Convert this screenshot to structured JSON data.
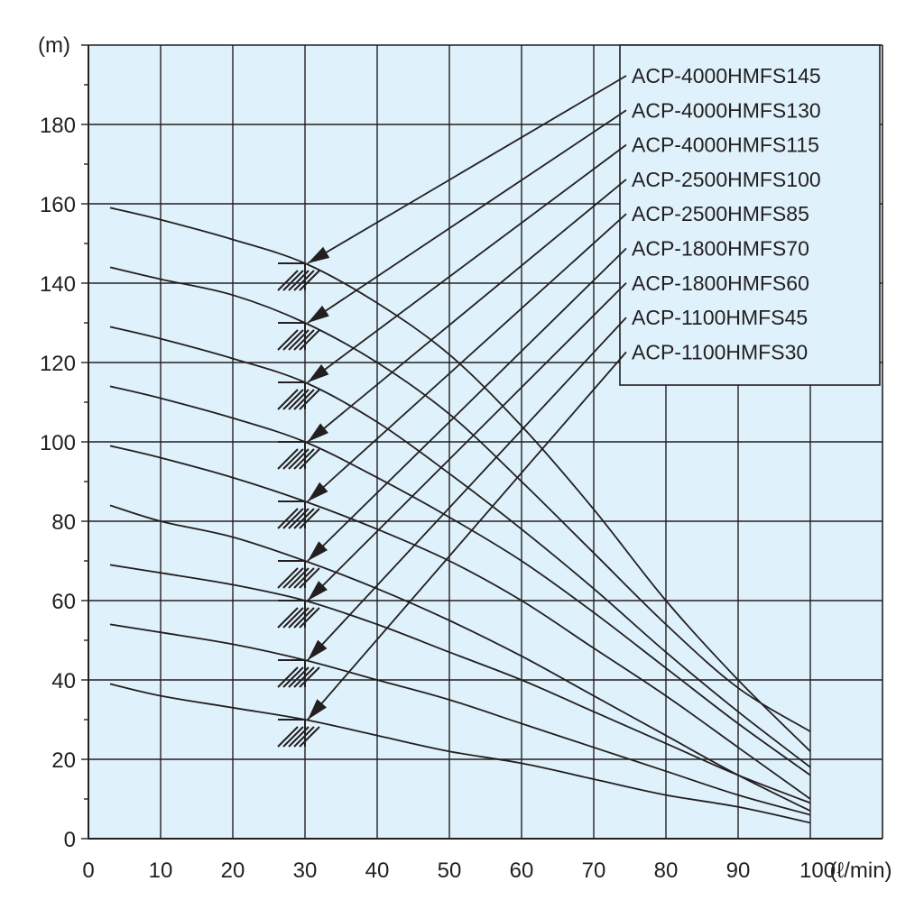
{
  "chart_data": {
    "type": "line",
    "title": "",
    "xlabel": "(ℓ/min)",
    "ylabel": "(m)",
    "xlim": [
      0,
      110
    ],
    "ylim": [
      0,
      200
    ],
    "x_ticks": [
      "0",
      "10",
      "20",
      "30",
      "40",
      "50",
      "60",
      "70",
      "80",
      "90",
      "100"
    ],
    "y_ticks": [
      "0",
      "20",
      "40",
      "60",
      "80",
      "100",
      "120",
      "140",
      "160",
      "180"
    ],
    "grid": true,
    "legend_position": "top-right",
    "rated_flow": 30,
    "series": [
      {
        "name": "ACP-4000HMFS145",
        "x": [
          3,
          10,
          20,
          30,
          40,
          50,
          60,
          70,
          80,
          90,
          100
        ],
        "y": [
          159,
          156,
          151,
          145,
          135,
          122,
          104,
          83,
          60,
          40,
          22
        ]
      },
      {
        "name": "ACP-4000HMFS130",
        "x": [
          3,
          10,
          20,
          30,
          40,
          50,
          60,
          70,
          80,
          90,
          100
        ],
        "y": [
          144,
          141,
          137,
          130,
          120,
          107,
          90,
          72,
          54,
          38,
          27
        ]
      },
      {
        "name": "ACP-4000HMFS115",
        "x": [
          3,
          10,
          20,
          30,
          40,
          50,
          60,
          70,
          80,
          90,
          100
        ],
        "y": [
          129,
          126,
          121,
          115,
          105,
          92,
          78,
          63,
          47,
          32,
          18
        ]
      },
      {
        "name": "ACP-2500HMFS100",
        "x": [
          3,
          10,
          20,
          30,
          40,
          50,
          60,
          70,
          80,
          90,
          100
        ],
        "y": [
          114,
          111,
          106,
          100,
          91,
          81,
          70,
          57,
          43,
          29,
          16
        ]
      },
      {
        "name": "ACP-2500HMFS85",
        "x": [
          3,
          10,
          20,
          30,
          40,
          50,
          60,
          70,
          80,
          90,
          100
        ],
        "y": [
          99,
          96,
          91,
          85,
          78,
          70,
          60,
          48,
          36,
          23,
          10
        ]
      },
      {
        "name": "ACP-1800HMFS70",
        "x": [
          3,
          10,
          20,
          30,
          40,
          50,
          60,
          70,
          80,
          90,
          100
        ],
        "y": [
          84,
          80,
          76,
          70,
          63,
          55,
          46,
          36,
          26,
          16,
          7
        ]
      },
      {
        "name": "ACP-1800HMFS60",
        "x": [
          3,
          10,
          20,
          30,
          40,
          50,
          60,
          70,
          80,
          90,
          100
        ],
        "y": [
          69,
          67,
          64,
          60,
          54,
          47,
          40,
          32,
          24,
          16,
          9
        ]
      },
      {
        "name": "ACP-1100HMFS45",
        "x": [
          3,
          10,
          20,
          30,
          40,
          50,
          60,
          70,
          80,
          90,
          100
        ],
        "y": [
          54,
          52,
          49,
          45,
          40,
          35,
          29,
          23,
          17,
          11,
          6
        ]
      },
      {
        "name": "ACP-1100HMFS30",
        "x": [
          3,
          10,
          20,
          30,
          40,
          50,
          60,
          70,
          80,
          90,
          100
        ],
        "y": [
          39,
          36,
          33,
          30,
          26,
          22,
          19,
          15,
          11,
          8,
          4
        ]
      }
    ]
  },
  "colors": {
    "plot_background": "#dff1fb",
    "line": "#231f20",
    "legend_background": "#dff1fb"
  }
}
